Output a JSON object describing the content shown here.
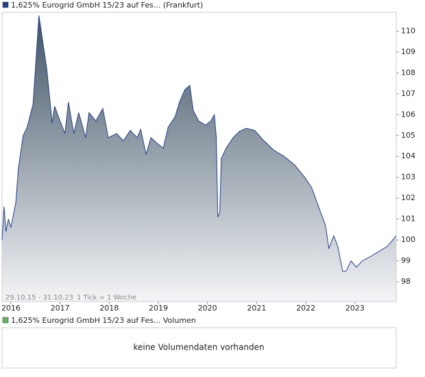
{
  "chart_data": {
    "type": "area",
    "x": [
      2015.82,
      2015.86,
      2015.9,
      2015.95,
      2016.0,
      2016.1,
      2016.15,
      2016.25,
      2016.33,
      2016.45,
      2016.57,
      2016.73,
      2016.84,
      2016.89,
      2017.0,
      2017.1,
      2017.17,
      2017.28,
      2017.38,
      2017.52,
      2017.59,
      2017.73,
      2017.87,
      2017.98,
      2018.15,
      2018.29,
      2018.43,
      2018.57,
      2018.64,
      2018.75,
      2018.85,
      2018.99,
      2019.1,
      2019.2,
      2019.34,
      2019.43,
      2019.54,
      2019.64,
      2019.71,
      2019.82,
      2019.96,
      2020.07,
      2020.14,
      2020.18,
      2020.21,
      2020.25,
      2020.28,
      2020.38,
      2020.52,
      2020.65,
      2020.79,
      2020.96,
      2021.15,
      2021.35,
      2021.56,
      2021.77,
      2021.98,
      2022.12,
      2022.26,
      2022.4,
      2022.47,
      2022.57,
      2022.65,
      2022.75,
      2022.82,
      2022.92,
      2023.03,
      2023.15,
      2023.31,
      2023.52,
      2023.66,
      2023.84
    ],
    "series": [
      {
        "name": "1,625% Eurogrid GmbH 15/23 auf Fes... (Frankfurt)",
        "color": "#1f3f8f",
        "values": [
          100.0,
          101.6,
          100.4,
          101.0,
          100.6,
          101.8,
          103.4,
          105.0,
          105.4,
          106.5,
          110.75,
          108.2,
          105.6,
          106.4,
          105.7,
          105.1,
          106.6,
          105.1,
          106.1,
          104.9,
          106.1,
          105.7,
          106.3,
          104.9,
          105.1,
          104.75,
          105.25,
          104.9,
          105.3,
          104.1,
          104.9,
          104.6,
          104.4,
          105.4,
          105.9,
          106.6,
          107.2,
          107.4,
          106.2,
          105.7,
          105.5,
          105.7,
          106.0,
          104.9,
          101.1,
          101.3,
          103.9,
          104.4,
          104.9,
          105.2,
          105.35,
          105.25,
          104.75,
          104.3,
          104.0,
          103.6,
          103.0,
          102.5,
          101.6,
          100.7,
          99.6,
          100.2,
          99.7,
          98.5,
          98.5,
          99.0,
          98.7,
          99.0,
          99.2,
          99.5,
          99.7,
          100.2
        ]
      }
    ],
    "xlim": [
      2015.82,
      2023.84
    ],
    "xticks": [
      2016,
      2017,
      2018,
      2019,
      2020,
      2021,
      2022,
      2023
    ],
    "ylim": [
      97.05,
      110.9
    ],
    "yticks": [
      98,
      99,
      100,
      101,
      102,
      103,
      104,
      105,
      106,
      107,
      108,
      109,
      110
    ],
    "grid": false,
    "date_range": "29.10.15 - 31.10.23",
    "tick_info": "1 Tick = 1 Woche",
    "volume_legend": {
      "name": "1,625% Eurogrid GmbH 15/23 auf Fes... Volumen",
      "color": "#5cb85c"
    },
    "volume_message": "keine Volumendaten vorhanden"
  }
}
